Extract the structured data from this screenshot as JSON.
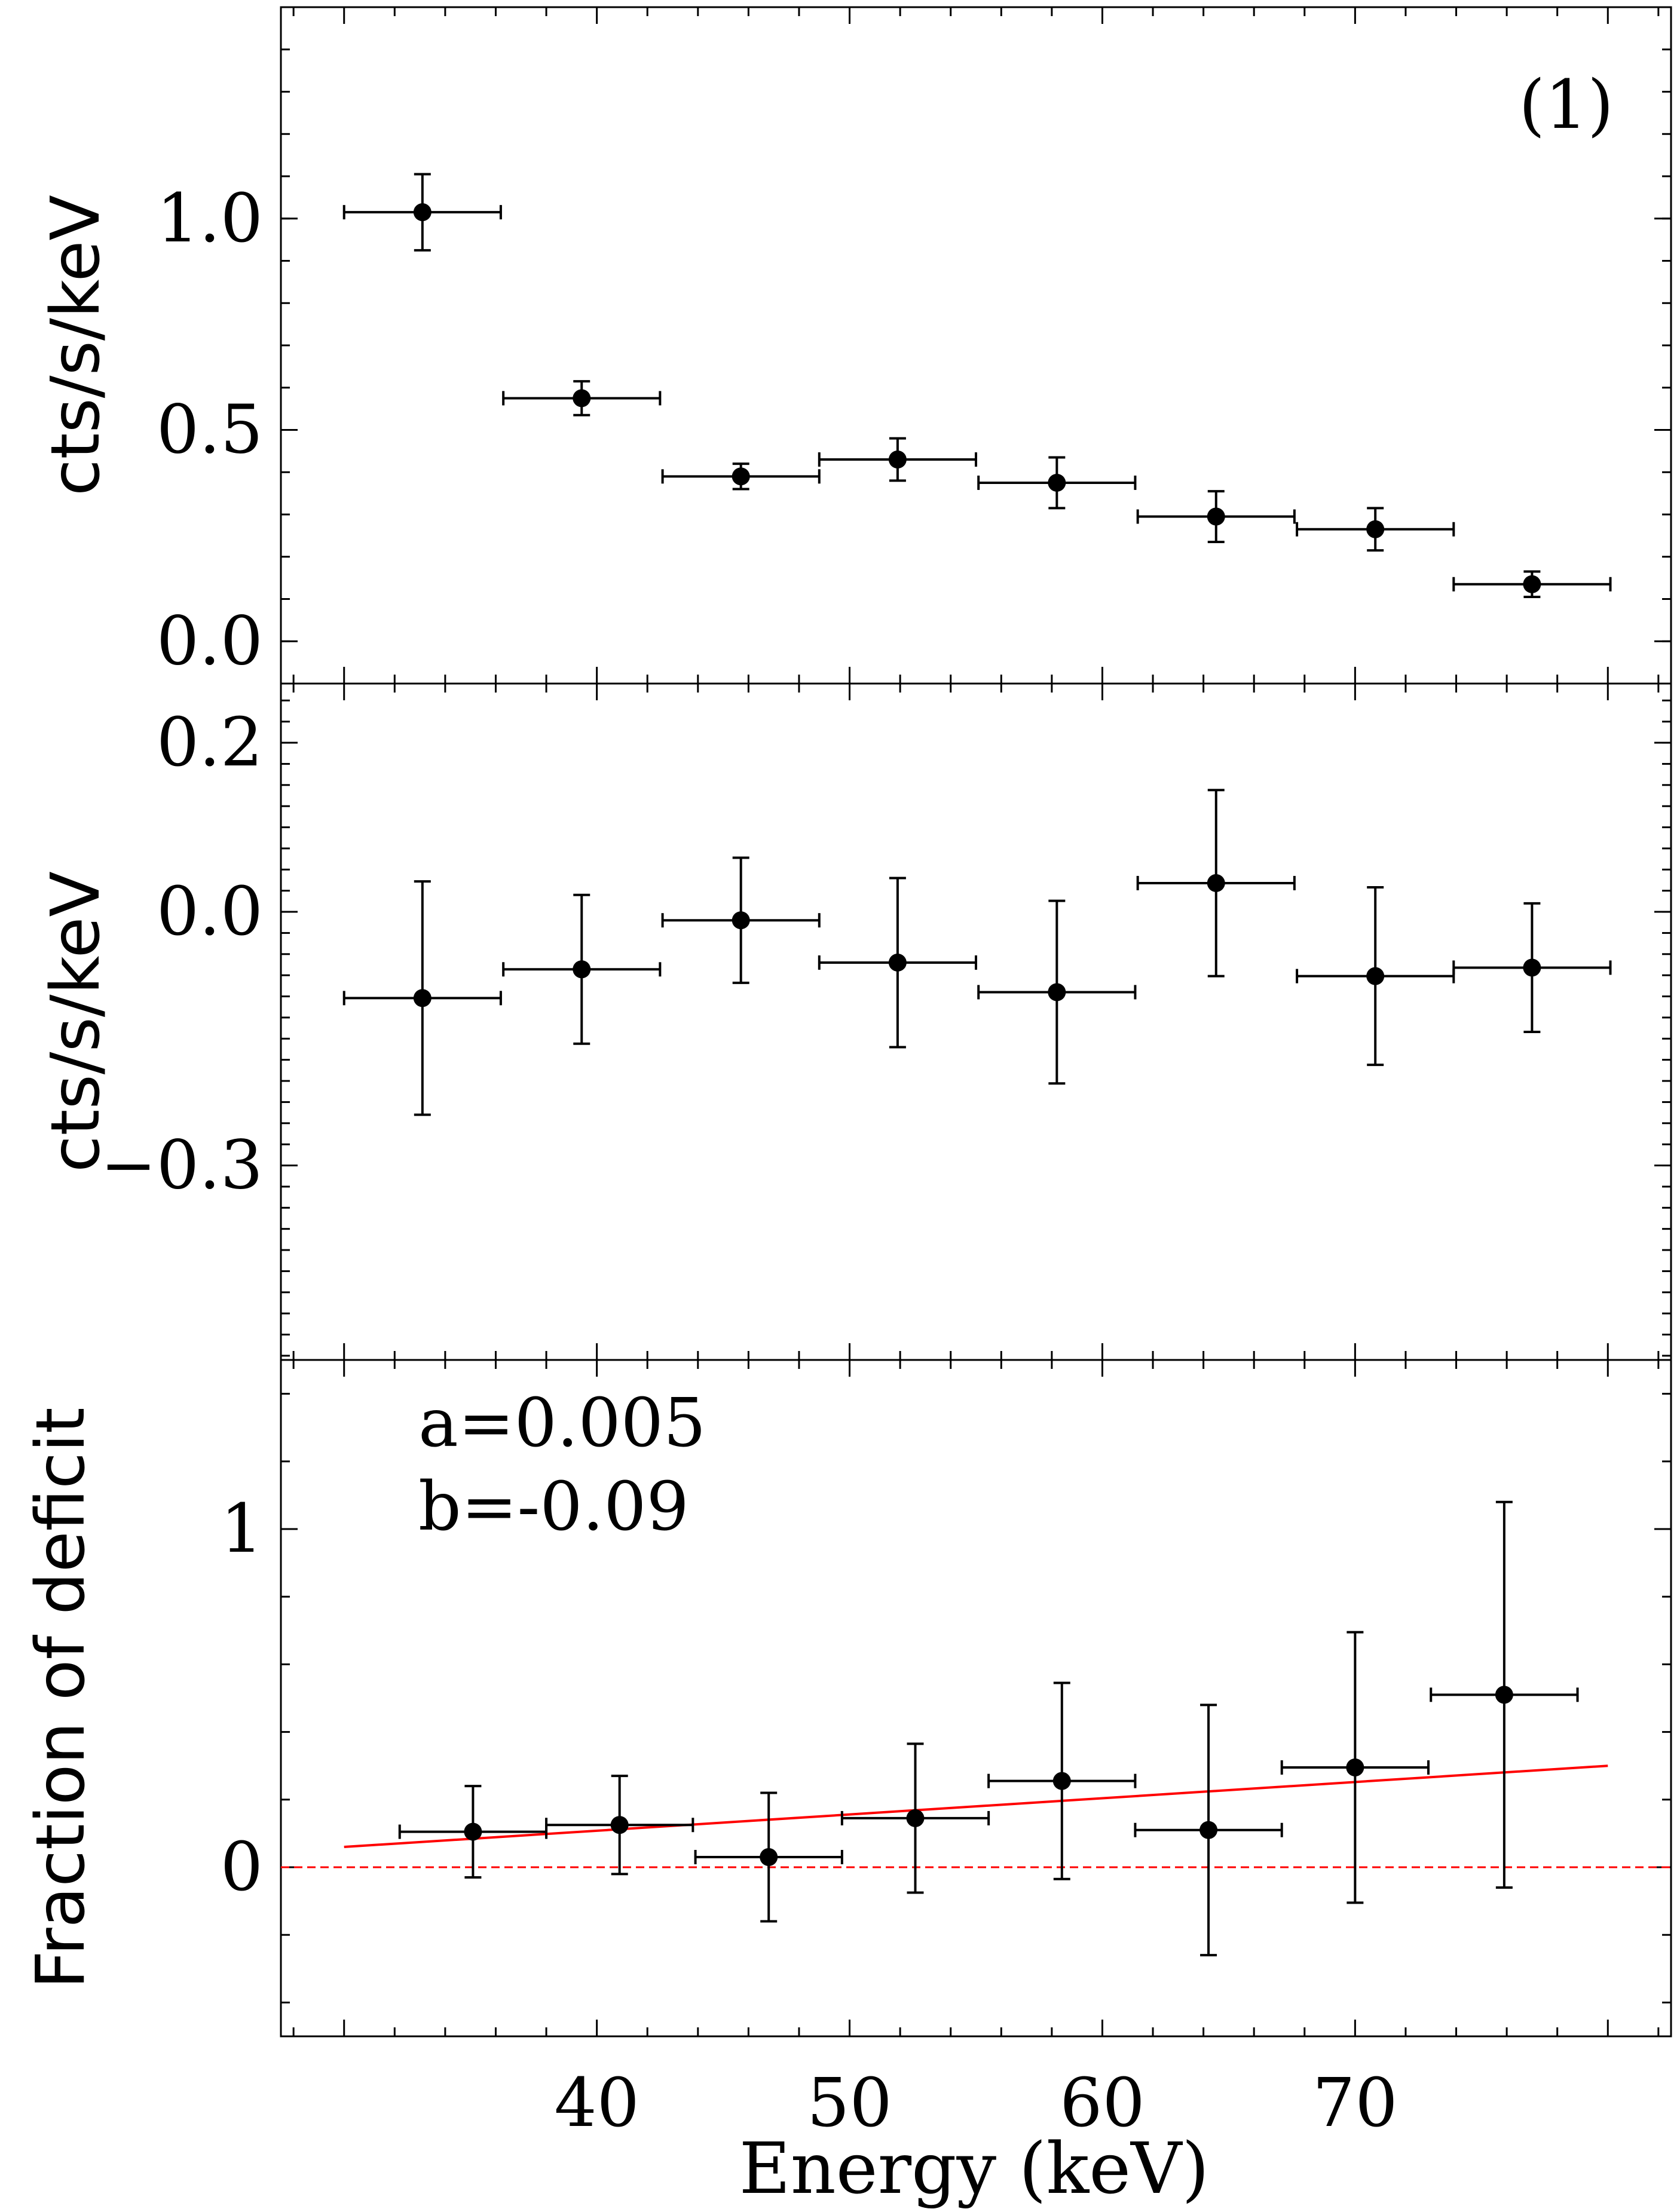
{
  "figure": {
    "panel_label": "(1)",
    "xlabel": "Energy (keV)"
  },
  "chart_data": [
    {
      "type": "scatter",
      "panel": "top",
      "ylabel": "cts/s/keV",
      "xlim": [
        27.5,
        82.5
      ],
      "ylim": [
        -0.1,
        1.5
      ],
      "yticks": [
        0.0,
        0.5,
        1.0
      ],
      "ytick_labels": [
        "0.0",
        "0.5",
        "1.0"
      ],
      "annotation": "(1)",
      "points": [
        {
          "x": 33.1,
          "xerr": 3.1,
          "y": 1.015,
          "yerr": 0.09
        },
        {
          "x": 39.4,
          "xerr": 3.1,
          "y": 0.575,
          "yerr": 0.04
        },
        {
          "x": 45.7,
          "xerr": 3.1,
          "y": 0.39,
          "yerr": 0.03
        },
        {
          "x": 51.9,
          "xerr": 3.1,
          "y": 0.43,
          "yerr": 0.05
        },
        {
          "x": 58.2,
          "xerr": 3.1,
          "y": 0.375,
          "yerr": 0.06
        },
        {
          "x": 64.5,
          "xerr": 3.1,
          "y": 0.295,
          "yerr": 0.06
        },
        {
          "x": 70.8,
          "xerr": 3.1,
          "y": 0.265,
          "yerr": 0.05
        },
        {
          "x": 77.0,
          "xerr": 3.1,
          "y": 0.135,
          "yerr": 0.03
        }
      ]
    },
    {
      "type": "scatter",
      "panel": "middle",
      "ylabel": "cts/s/keV",
      "xlim": [
        27.5,
        82.5
      ],
      "ylim": [
        -0.53,
        0.27
      ],
      "yticks": [
        -0.3,
        0.0,
        0.2
      ],
      "ytick_labels": [
        "−0.3",
        "0.0",
        "0.2"
      ],
      "points": [
        {
          "x": 33.1,
          "xerr": 3.1,
          "y": -0.102,
          "yerr": 0.138
        },
        {
          "x": 39.4,
          "xerr": 3.1,
          "y": -0.068,
          "yerr": 0.088
        },
        {
          "x": 45.7,
          "xerr": 3.1,
          "y": -0.01,
          "yerr": 0.074
        },
        {
          "x": 51.9,
          "xerr": 3.1,
          "y": -0.06,
          "yerr": 0.1
        },
        {
          "x": 58.2,
          "xerr": 3.1,
          "y": -0.095,
          "yerr": 0.108
        },
        {
          "x": 64.5,
          "xerr": 3.1,
          "y": 0.034,
          "yerr": 0.11
        },
        {
          "x": 70.8,
          "xerr": 3.1,
          "y": -0.076,
          "yerr": 0.105
        },
        {
          "x": 77.0,
          "xerr": 3.1,
          "y": -0.066,
          "yerr": 0.076
        }
      ]
    },
    {
      "type": "scatter",
      "panel": "bottom",
      "ylabel": "Fraction of deficit",
      "xlabel": "Energy (keV)",
      "xlim": [
        27.5,
        82.5
      ],
      "ylim": [
        -0.5,
        1.5
      ],
      "yticks": [
        0,
        1
      ],
      "ytick_labels": [
        "0",
        "1"
      ],
      "xticks": [
        40,
        50,
        60,
        70
      ],
      "xtick_labels": [
        "40",
        "50",
        "60",
        "70"
      ],
      "annotations": [
        "a=0.005",
        "b=-0.09"
      ],
      "fit_line": {
        "color": "#ff0000",
        "x": [
          30,
          80
        ],
        "y": [
          0.06,
          0.3
        ]
      },
      "reference_line": {
        "color": "#ff0000",
        "style": "dashed",
        "y": 0
      },
      "points": [
        {
          "x": 35.1,
          "xerr": 2.9,
          "y": 0.105,
          "yerr": 0.135
        },
        {
          "x": 40.9,
          "xerr": 2.9,
          "y": 0.125,
          "yerr": 0.145
        },
        {
          "x": 46.8,
          "xerr": 2.9,
          "y": 0.03,
          "yerr": 0.19
        },
        {
          "x": 52.6,
          "xerr": 2.9,
          "y": 0.145,
          "yerr": 0.22
        },
        {
          "x": 58.4,
          "xerr": 2.9,
          "y": 0.255,
          "yerr": 0.29
        },
        {
          "x": 64.2,
          "xerr": 2.9,
          "y": 0.11,
          "yerr": 0.37
        },
        {
          "x": 70.0,
          "xerr": 2.9,
          "y": 0.295,
          "yerr": 0.4
        },
        {
          "x": 75.9,
          "xerr": 2.9,
          "y": 0.51,
          "yerr": 0.57
        }
      ]
    }
  ]
}
